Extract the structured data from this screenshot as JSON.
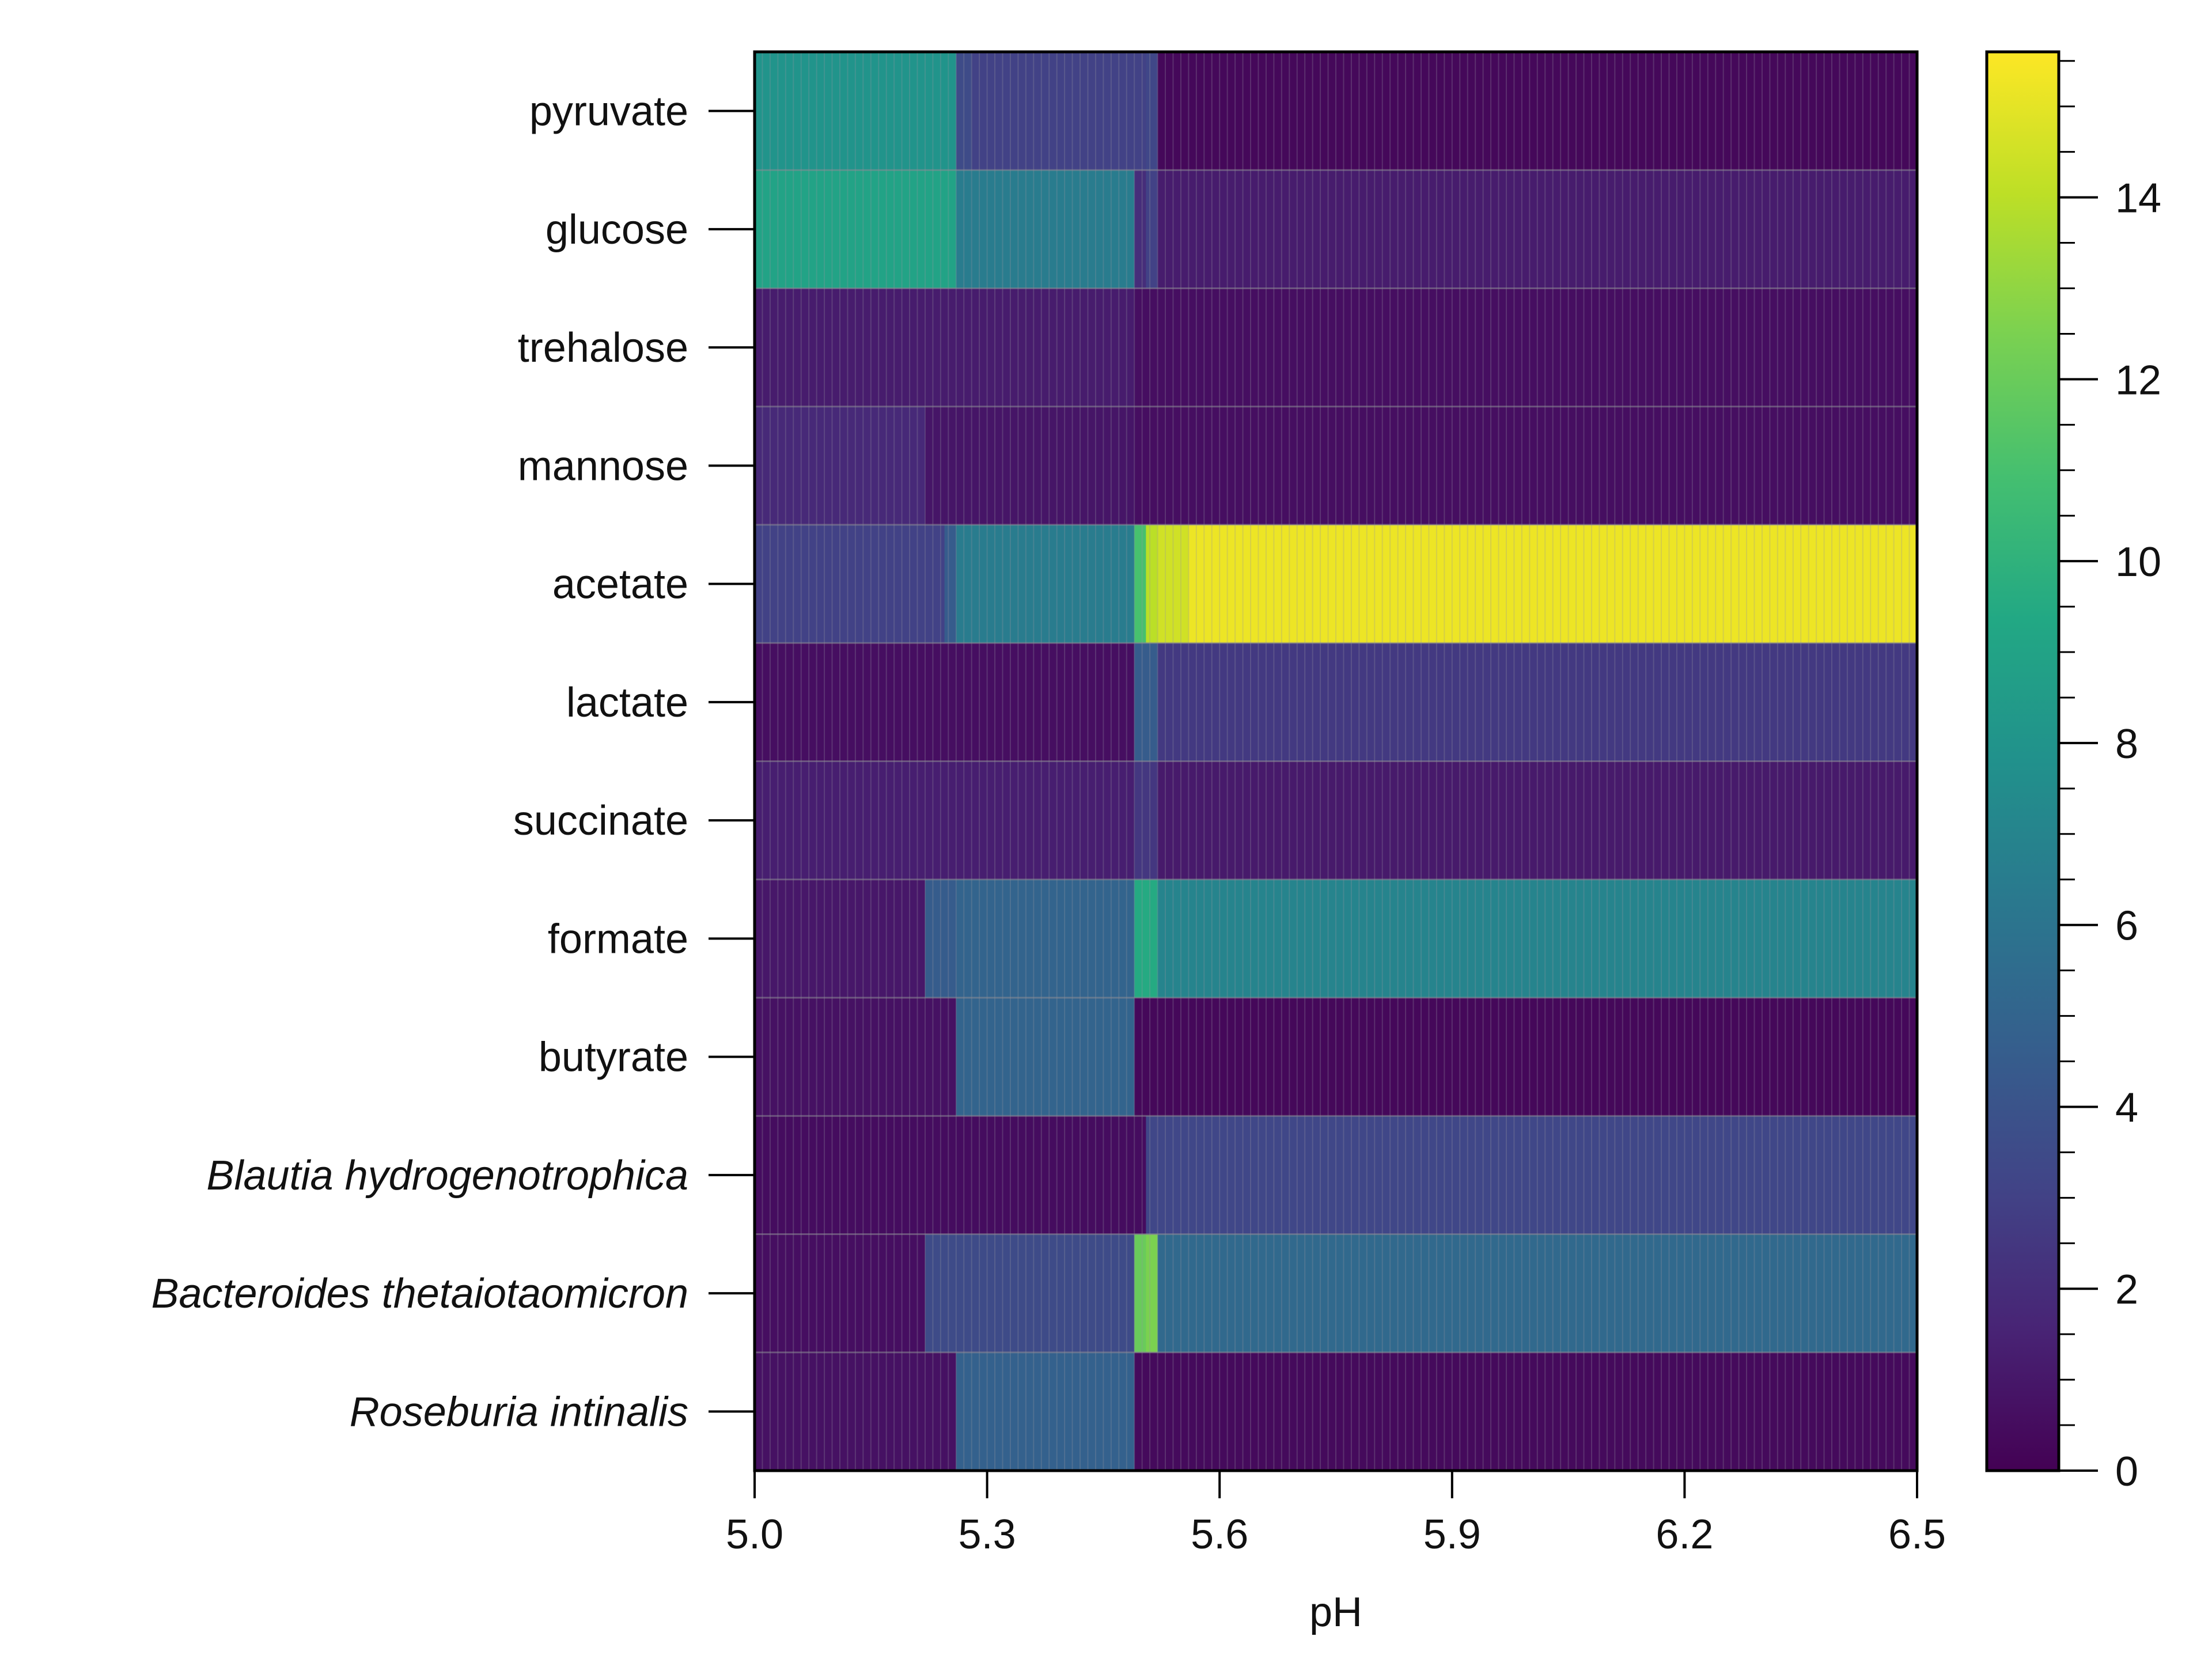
{
  "chart_data": {
    "type": "heatmap",
    "title": "",
    "xlabel": "pH",
    "ylabel": "",
    "x_range": [
      5.0,
      6.5
    ],
    "x_ticks": [
      "5.0",
      "5.3",
      "5.6",
      "5.9",
      "6.2",
      "6.5"
    ],
    "x_segments": [
      {
        "x0": 5.0,
        "x1": 5.22
      },
      {
        "x0": 5.22,
        "x1": 5.245
      },
      {
        "x0": 5.245,
        "x1": 5.26
      },
      {
        "x0": 5.26,
        "x1": 5.28
      },
      {
        "x0": 5.28,
        "x1": 5.49
      },
      {
        "x0": 5.49,
        "x1": 5.505
      },
      {
        "x0": 5.505,
        "x1": 5.52
      },
      {
        "x0": 5.52,
        "x1": 5.56
      },
      {
        "x0": 5.56,
        "x1": 6.5
      }
    ],
    "rows": [
      {
        "label": "pyruvate",
        "italic": false,
        "values": [
          8.0,
          8.0,
          8.0,
          3.5,
          3.0,
          3.0,
          3.3,
          0.3,
          0.3
        ]
      },
      {
        "label": "glucose",
        "italic": false,
        "values": [
          9.0,
          9.0,
          9.0,
          6.5,
          6.5,
          2.0,
          3.0,
          1.2,
          1.2
        ]
      },
      {
        "label": "trehalose",
        "italic": false,
        "values": [
          1.2,
          1.2,
          1.2,
          1.2,
          1.2,
          0.6,
          0.6,
          0.6,
          0.6
        ]
      },
      {
        "label": "mannose",
        "italic": false,
        "values": [
          1.8,
          0.9,
          0.9,
          0.9,
          0.9,
          0.6,
          0.6,
          0.6,
          0.6
        ]
      },
      {
        "label": "acetate",
        "italic": false,
        "values": [
          3.0,
          3.0,
          4.5,
          6.5,
          6.5,
          11.0,
          14.0,
          14.5,
          15.2
        ]
      },
      {
        "label": "lactate",
        "italic": false,
        "values": [
          0.6,
          0.6,
          0.6,
          0.6,
          0.6,
          4.5,
          4.5,
          2.6,
          2.6
        ]
      },
      {
        "label": "succinate",
        "italic": false,
        "values": [
          1.3,
          1.3,
          1.3,
          1.3,
          1.3,
          2.5,
          2.5,
          1.1,
          1.1
        ]
      },
      {
        "label": "formate",
        "italic": false,
        "values": [
          1.0,
          4.5,
          4.5,
          5.0,
          5.0,
          9.5,
          9.5,
          7.0,
          7.0
        ]
      },
      {
        "label": "butyrate",
        "italic": false,
        "values": [
          0.7,
          0.7,
          0.7,
          5.0,
          5.0,
          0.3,
          0.3,
          0.3,
          0.3
        ]
      },
      {
        "label": "Blautia hydrogenotrophica",
        "italic": true,
        "values": [
          0.5,
          0.5,
          0.5,
          0.5,
          0.5,
          0.5,
          3.3,
          3.3,
          3.3
        ]
      },
      {
        "label": "Bacteroides thetaiotaomicron",
        "italic": true,
        "values": [
          0.6,
          3.5,
          3.5,
          3.5,
          3.5,
          12.0,
          12.5,
          5.3,
          5.3
        ]
      },
      {
        "label": "Roseburia intinalis",
        "italic": true,
        "values": [
          0.7,
          0.7,
          0.7,
          4.8,
          4.8,
          0.4,
          0.4,
          0.4,
          0.4
        ]
      }
    ],
    "colorbar": {
      "colormap": "viridis",
      "range": [
        0,
        15.6
      ],
      "major_ticks": [
        "0",
        "2",
        "4",
        "6",
        "8",
        "10",
        "12",
        "14"
      ],
      "minor_step": 0.5
    },
    "grid": false,
    "legend": "colorbar-right"
  }
}
